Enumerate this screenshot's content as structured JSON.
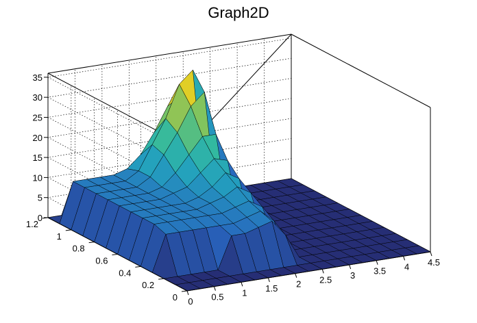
{
  "chart_data": {
    "type": "surface",
    "title": "Graph2D",
    "xlabel": "",
    "ylabel": "",
    "zlabel": "",
    "xlim": [
      0,
      4.5
    ],
    "ylim": [
      0,
      1.2
    ],
    "zlim": [
      0,
      36
    ],
    "x_ticks": [
      "0",
      "0.5",
      "1",
      "1.5",
      "2",
      "2.5",
      "3",
      "3.5",
      "4",
      "4.5"
    ],
    "y_ticks": [
      "0",
      "0.2",
      "0.4",
      "0.6",
      "0.8",
      "1",
      "1.2"
    ],
    "z_ticks": [
      "0",
      "5",
      "10",
      "15",
      "20",
      "25",
      "30",
      "35"
    ],
    "grid": true,
    "colormap": "viridis-like (navy to teal to green to yellow)",
    "surface_notes": "Plateau near z~10 for x in ~0.1-2 and y above ~0.3; raised ridge reaching ~35 near x~2.2, y~1.0; near-zero elsewhere; dip toward y~0.2.",
    "samples_x": [
      0,
      0.25,
      0.5,
      0.75,
      1,
      1.25,
      1.5,
      1.75,
      2,
      2.25,
      2.5,
      2.75,
      3,
      3.25,
      3.5,
      3.75,
      4,
      4.25,
      4.5
    ],
    "samples_y": [
      0,
      0.1,
      0.2,
      0.3,
      0.4,
      0.5,
      0.6,
      0.7,
      0.8,
      0.9,
      1.0,
      1.1,
      1.2
    ],
    "z": [
      [
        0,
        0,
        0,
        0,
        0,
        0,
        0,
        0,
        0,
        0,
        0,
        0,
        0,
        0,
        0,
        0,
        0,
        0,
        0
      ],
      [
        0,
        0,
        0,
        0,
        0,
        0,
        0,
        0,
        0,
        0,
        0,
        0,
        0,
        0,
        0,
        0,
        0,
        0,
        0
      ],
      [
        0,
        0,
        0,
        0,
        0,
        8,
        8,
        9,
        10,
        6,
        0,
        0,
        0,
        0,
        0,
        0,
        0,
        0,
        0
      ],
      [
        0,
        9,
        9,
        9,
        9,
        9,
        9,
        10,
        11,
        8,
        0,
        0,
        0,
        0,
        0,
        0,
        0,
        0,
        0
      ],
      [
        0,
        10,
        10,
        10,
        10,
        10,
        10,
        11,
        12,
        10,
        0,
        0,
        0,
        0,
        0,
        0,
        0,
        0,
        0
      ],
      [
        0,
        10,
        10,
        10,
        10,
        10,
        11,
        12,
        14,
        12,
        0,
        0,
        0,
        0,
        0,
        0,
        0,
        0,
        0
      ],
      [
        0,
        10,
        10,
        10,
        10,
        10,
        11,
        13,
        16,
        14,
        0,
        0,
        0,
        0,
        0,
        0,
        0,
        0,
        0
      ],
      [
        0,
        10,
        10,
        10,
        10,
        11,
        12,
        15,
        18,
        17,
        0,
        0,
        0,
        0,
        0,
        0,
        0,
        0,
        0
      ],
      [
        0,
        10,
        10,
        10,
        10,
        11,
        14,
        18,
        22,
        22,
        0,
        0,
        0,
        0,
        0,
        0,
        0,
        0,
        0
      ],
      [
        0,
        10,
        10,
        10,
        10,
        12,
        17,
        22,
        28,
        31,
        0,
        0,
        0,
        0,
        0,
        0,
        0,
        0,
        0
      ],
      [
        0,
        10,
        10,
        10,
        10,
        12,
        18,
        24,
        32,
        35,
        0,
        0,
        0,
        0,
        0,
        0,
        0,
        0,
        0
      ],
      [
        0,
        10,
        10,
        10,
        10,
        11,
        14,
        19,
        25,
        27,
        0,
        0,
        0,
        0,
        0,
        0,
        0,
        0,
        0
      ],
      [
        0,
        0,
        0,
        0,
        0,
        0,
        0,
        0,
        0,
        0,
        0,
        0,
        0,
        0,
        0,
        0,
        0,
        0,
        0
      ]
    ]
  }
}
